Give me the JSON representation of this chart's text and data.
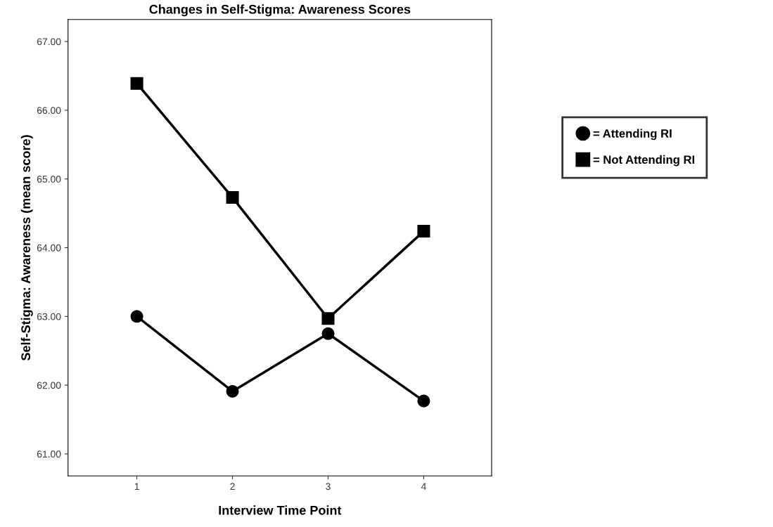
{
  "chart_data": {
    "type": "line",
    "title": "Changes in Self-Stigma: Awareness Scores",
    "xlabel": "Interview Time Point",
    "ylabel": "Self-Stigma: Awareness (mean score)",
    "x": [
      1,
      2,
      3,
      4
    ],
    "series": [
      {
        "name": "= Attending RI",
        "color": "#000000",
        "marker": "circle",
        "values": [
          63.0,
          61.91,
          62.75,
          61.77
        ]
      },
      {
        "name": "= Not Attending RI",
        "color": "#000000",
        "marker": "square",
        "values": [
          66.39,
          64.73,
          62.97,
          64.24
        ]
      }
    ],
    "xlim": [
      0.28,
      4.71
    ],
    "xticks": [
      1,
      2,
      3,
      4
    ],
    "ylim": [
      60.68,
      67.32
    ],
    "yticks": [
      {
        "value": 61,
        "label": "61.00"
      },
      {
        "value": 62,
        "label": "62.00"
      },
      {
        "value": 63,
        "label": "63.00"
      },
      {
        "value": 64,
        "label": "64.00"
      },
      {
        "value": 65,
        "label": "65.00"
      },
      {
        "value": 66,
        "label": "66.00"
      },
      {
        "value": 67,
        "label": "67.00"
      }
    ],
    "grid": false,
    "legend": "right",
    "line_style": "solid"
  }
}
